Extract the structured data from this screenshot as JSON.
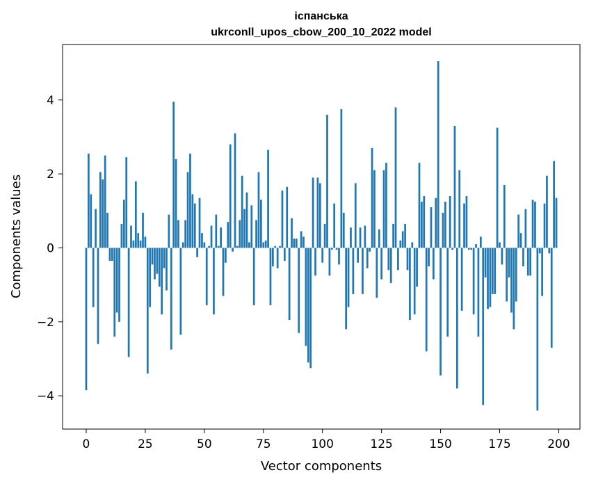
{
  "chart_data": {
    "type": "bar",
    "title": "іспанська",
    "subtitle": "ukrconll_upos_cbow_200_10_2022 model",
    "xlabel": "Vector components",
    "ylabel": "Components values",
    "xlim": [
      -10,
      209
    ],
    "ylim": [
      -4.9,
      5.5
    ],
    "xticks": [
      0,
      25,
      50,
      75,
      100,
      125,
      150,
      175,
      200
    ],
    "yticks": [
      -4,
      -2,
      0,
      2,
      4
    ],
    "xtick_labels": [
      "0",
      "25",
      "50",
      "75",
      "100",
      "125",
      "150",
      "175",
      "200"
    ],
    "ytick_labels": [
      "−4",
      "−2",
      "0",
      "2",
      "4"
    ],
    "bar_color": "#1f77b4",
    "grid": false,
    "values": [
      -3.85,
      2.55,
      1.45,
      -1.6,
      1.05,
      -2.6,
      2.05,
      1.85,
      2.5,
      0.95,
      -0.35,
      -0.35,
      -2.4,
      -1.75,
      -2.0,
      0.65,
      1.3,
      2.45,
      -2.95,
      0.6,
      0.2,
      1.8,
      0.4,
      0.2,
      0.95,
      0.3,
      -3.4,
      -1.6,
      -0.45,
      -0.85,
      -0.7,
      -1.05,
      -1.8,
      -0.55,
      -1.15,
      0.9,
      -2.75,
      3.95,
      2.4,
      0.75,
      -2.35,
      0.15,
      0.75,
      2.05,
      2.55,
      1.45,
      1.2,
      -0.25,
      1.35,
      0.4,
      0.15,
      -1.55,
      0.05,
      0.6,
      -1.8,
      0.9,
      0.05,
      0.55,
      -1.3,
      -0.4,
      0.7,
      2.8,
      -0.1,
      3.1,
      0.05,
      0.75,
      1.95,
      1.05,
      1.5,
      0.15,
      1.15,
      -1.55,
      0.75,
      2.05,
      1.3,
      0.15,
      0.2,
      2.65,
      -1.55,
      -0.5,
      0.05,
      -0.55,
      0.05,
      1.55,
      -0.35,
      1.65,
      -1.95,
      0.8,
      0.25,
      0.25,
      -2.3,
      0.45,
      0.3,
      -2.65,
      -3.1,
      -3.25,
      1.9,
      -0.75,
      1.9,
      1.75,
      -0.4,
      0.65,
      3.6,
      -0.75,
      -0.05,
      1.2,
      -0.05,
      -0.45,
      3.75,
      0.95,
      -2.2,
      -1.6,
      0.55,
      -1.25,
      1.75,
      -0.4,
      0.55,
      -1.25,
      0.6,
      -0.55,
      -0.1,
      2.7,
      2.1,
      -1.35,
      0.5,
      -0.85,
      2.1,
      2.3,
      -0.6,
      -0.95,
      0.65,
      3.8,
      -0.6,
      0.2,
      0.45,
      0.65,
      -0.6,
      -1.95,
      0.15,
      -1.8,
      -1.05,
      2.3,
      1.25,
      1.4,
      -2.8,
      -0.5,
      1.1,
      -0.85,
      1.35,
      5.05,
      -3.45,
      0.95,
      1.25,
      -2.4,
      1.4,
      -0.05,
      3.3,
      -3.8,
      2.1,
      -1.7,
      1.2,
      1.4,
      -0.05,
      -0.05,
      -1.8,
      0.1,
      -2.4,
      0.3,
      -4.25,
      -0.8,
      -1.65,
      -1.6,
      -1.25,
      -1.25,
      3.25,
      0.15,
      -0.45,
      1.7,
      -1.45,
      -0.8,
      -1.75,
      -2.2,
      -1.45,
      0.9,
      0.4,
      -0.5,
      1.05,
      -0.75,
      -0.75,
      1.3,
      1.25,
      -4.4,
      -0.15,
      -1.3,
      1.2,
      1.95,
      -0.15,
      -2.7,
      2.35,
      1.35
    ]
  }
}
